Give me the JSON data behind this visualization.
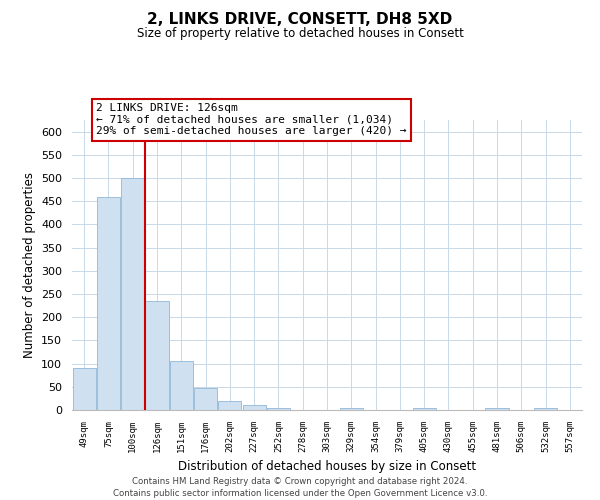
{
  "title": "2, LINKS DRIVE, CONSETT, DH8 5XD",
  "subtitle": "Size of property relative to detached houses in Consett",
  "xlabel": "Distribution of detached houses by size in Consett",
  "ylabel": "Number of detached properties",
  "bar_labels": [
    "49sqm",
    "75sqm",
    "100sqm",
    "126sqm",
    "151sqm",
    "176sqm",
    "202sqm",
    "227sqm",
    "252sqm",
    "278sqm",
    "303sqm",
    "329sqm",
    "354sqm",
    "379sqm",
    "405sqm",
    "430sqm",
    "455sqm",
    "481sqm",
    "506sqm",
    "532sqm",
    "557sqm"
  ],
  "bar_values": [
    90,
    458,
    500,
    235,
    105,
    47,
    20,
    10,
    5,
    0,
    0,
    5,
    0,
    0,
    4,
    0,
    0,
    4,
    0,
    4,
    0
  ],
  "bar_color": "#cfe0f0",
  "bar_edge_color": "#90b8d8",
  "vline_color": "#cc0000",
  "ylim": [
    0,
    625
  ],
  "yticks": [
    0,
    50,
    100,
    150,
    200,
    250,
    300,
    350,
    400,
    450,
    500,
    550,
    600
  ],
  "annotation_title": "2 LINKS DRIVE: 126sqm",
  "annotation_line1": "← 71% of detached houses are smaller (1,034)",
  "annotation_line2": "29% of semi-detached houses are larger (420) →",
  "annotation_box_color": "#ffffff",
  "annotation_box_edge": "#cc0000",
  "footer1": "Contains HM Land Registry data © Crown copyright and database right 2024.",
  "footer2": "Contains public sector information licensed under the Open Government Licence v3.0.",
  "background_color": "#ffffff",
  "grid_color": "#c8d8e8"
}
